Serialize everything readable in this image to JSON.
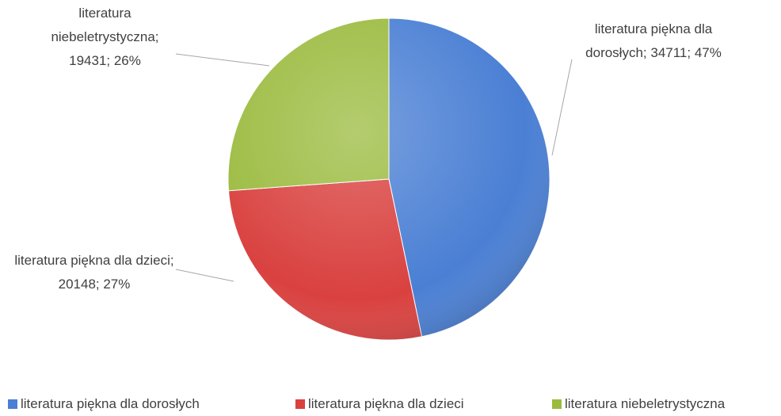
{
  "chart_data": {
    "type": "pie",
    "categories": [
      "literatura piękna dla dorosłych",
      "literatura piękna dla dzieci",
      "literatura niebeletrystyczna"
    ],
    "values": [
      34711,
      20148,
      19431
    ],
    "value_labels": [
      "literatura piękna dla dorosłych; 34711; 47%",
      "literatura piękna dla dzieci; 20148; 27%",
      "literatura niebeletrystyczna; 19431; 26%"
    ],
    "colors": [
      "#4a7fd4",
      "#d9413f",
      "#9bbb3f"
    ],
    "legend": "bottom"
  }
}
